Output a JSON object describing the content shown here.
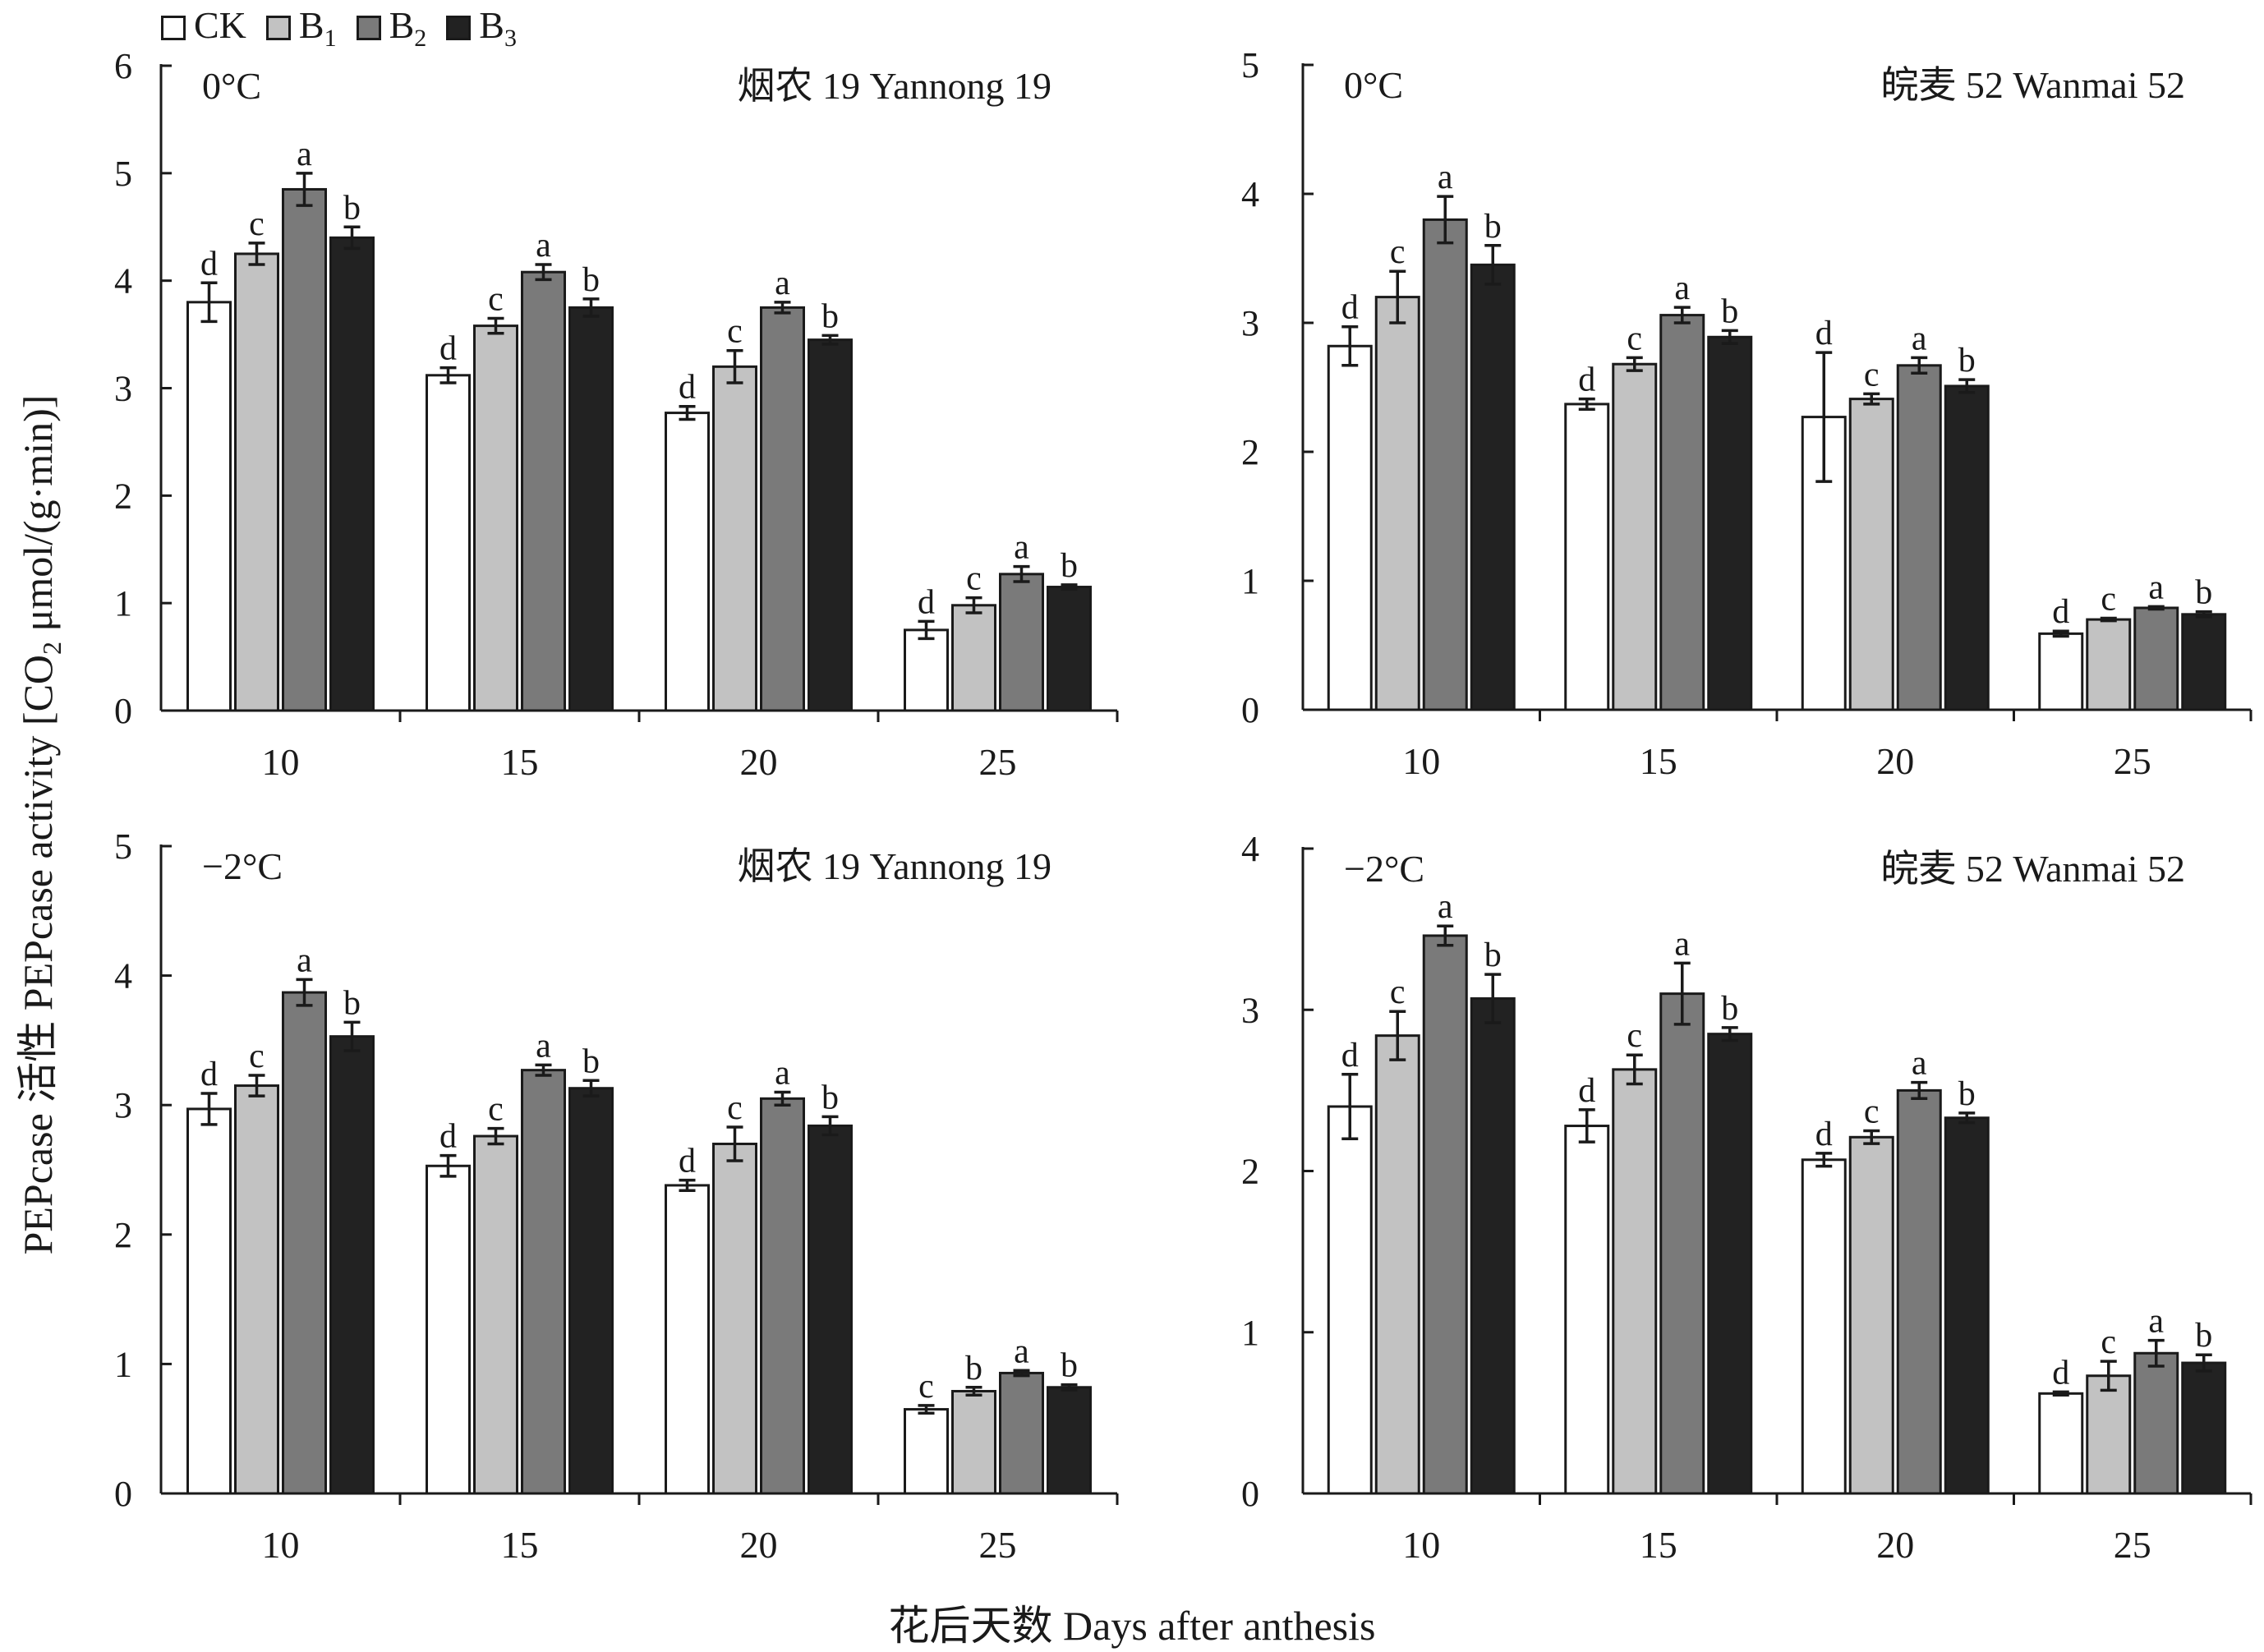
{
  "legend": {
    "items": [
      {
        "base": "CK",
        "sub": "",
        "color": "#ffffff"
      },
      {
        "base": "B",
        "sub": "1",
        "color": "#c2c2c2"
      },
      {
        "base": "B",
        "sub": "2",
        "color": "#7a7a7a"
      },
      {
        "base": "B",
        "sub": "3",
        "color": "#222222"
      }
    ]
  },
  "ylabel": {
    "pre": "PEPcase 活性 PEPcase activity [CO",
    "sub": "2",
    "post": " μmol/(g·min)]"
  },
  "xlabel": "花后天数 Days after anthesis",
  "chart_data": [
    {
      "type": "bar",
      "temperature": "0°C",
      "cultivar": "烟农 19 Yannong 19",
      "categories": [
        "10",
        "15",
        "20",
        "25"
      ],
      "ylim": [
        0,
        6
      ],
      "yticks": [
        0,
        1,
        2,
        3,
        4,
        5,
        6
      ],
      "series": [
        {
          "name": "CK",
          "values": [
            3.8,
            3.12,
            2.77,
            0.75
          ],
          "errors": [
            0.18,
            0.07,
            0.06,
            0.08
          ],
          "letters": [
            "d",
            "d",
            "d",
            "d"
          ]
        },
        {
          "name": "B1",
          "values": [
            4.25,
            3.58,
            3.2,
            0.98
          ],
          "errors": [
            0.1,
            0.07,
            0.15,
            0.07
          ],
          "letters": [
            "c",
            "c",
            "c",
            "c"
          ]
        },
        {
          "name": "B2",
          "values": [
            4.85,
            4.08,
            3.75,
            1.27
          ],
          "errors": [
            0.15,
            0.07,
            0.05,
            0.07
          ],
          "letters": [
            "a",
            "a",
            "a",
            "a"
          ]
        },
        {
          "name": "B3",
          "values": [
            4.4,
            3.75,
            3.45,
            1.15
          ],
          "errors": [
            0.1,
            0.08,
            0.04,
            0.02
          ],
          "letters": [
            "b",
            "b",
            "b",
            "b"
          ]
        }
      ]
    },
    {
      "type": "bar",
      "temperature": "0°C",
      "cultivar": "皖麦 52 Wanmai 52",
      "categories": [
        "10",
        "15",
        "20",
        "25"
      ],
      "ylim": [
        0,
        5
      ],
      "yticks": [
        0,
        1,
        2,
        3,
        4,
        5
      ],
      "series": [
        {
          "name": "CK",
          "values": [
            2.82,
            2.37,
            2.27,
            0.59
          ],
          "errors": [
            0.15,
            0.04,
            0.5,
            0.02
          ],
          "letters": [
            "d",
            "d",
            "d",
            "d"
          ]
        },
        {
          "name": "B1",
          "values": [
            3.2,
            2.68,
            2.41,
            0.7
          ],
          "errors": [
            0.2,
            0.05,
            0.04,
            0.01
          ],
          "letters": [
            "c",
            "c",
            "c",
            "c"
          ]
        },
        {
          "name": "B2",
          "values": [
            3.8,
            3.06,
            2.67,
            0.79
          ],
          "errors": [
            0.18,
            0.06,
            0.06,
            0.01
          ],
          "letters": [
            "a",
            "a",
            "a",
            "a"
          ]
        },
        {
          "name": "B3",
          "values": [
            3.45,
            2.89,
            2.51,
            0.74
          ],
          "errors": [
            0.15,
            0.05,
            0.05,
            0.02
          ],
          "letters": [
            "b",
            "b",
            "b",
            "b"
          ]
        }
      ]
    },
    {
      "type": "bar",
      "temperature": "−2°C",
      "cultivar": "烟农 19 Yannong 19",
      "categories": [
        "10",
        "15",
        "20",
        "25"
      ],
      "ylim": [
        0,
        5
      ],
      "yticks": [
        0,
        1,
        2,
        3,
        4,
        5
      ],
      "series": [
        {
          "name": "CK",
          "values": [
            2.97,
            2.53,
            2.38,
            0.65
          ],
          "errors": [
            0.12,
            0.08,
            0.04,
            0.03
          ],
          "letters": [
            "d",
            "d",
            "d",
            "c"
          ]
        },
        {
          "name": "B1",
          "values": [
            3.15,
            2.76,
            2.7,
            0.79
          ],
          "errors": [
            0.08,
            0.06,
            0.13,
            0.03
          ],
          "letters": [
            "c",
            "c",
            "c",
            "b"
          ]
        },
        {
          "name": "B2",
          "values": [
            3.87,
            3.27,
            3.05,
            0.93
          ],
          "errors": [
            0.1,
            0.04,
            0.05,
            0.02
          ],
          "letters": [
            "a",
            "a",
            "a",
            "a"
          ]
        },
        {
          "name": "B3",
          "values": [
            3.53,
            3.13,
            2.84,
            0.82
          ],
          "errors": [
            0.11,
            0.06,
            0.07,
            0.02
          ],
          "letters": [
            "b",
            "b",
            "b",
            "b"
          ]
        }
      ]
    },
    {
      "type": "bar",
      "temperature": "−2°C",
      "cultivar": "皖麦 52 Wanmai 52",
      "categories": [
        "10",
        "15",
        "20",
        "25"
      ],
      "ylim": [
        0,
        4
      ],
      "yticks": [
        0,
        1,
        2,
        3,
        4
      ],
      "series": [
        {
          "name": "CK",
          "values": [
            2.4,
            2.28,
            2.07,
            0.62
          ],
          "errors": [
            0.2,
            0.1,
            0.04,
            0.01
          ],
          "letters": [
            "d",
            "d",
            "d",
            "d"
          ]
        },
        {
          "name": "B1",
          "values": [
            2.84,
            2.63,
            2.21,
            0.73
          ],
          "errors": [
            0.15,
            0.09,
            0.04,
            0.09
          ],
          "letters": [
            "c",
            "c",
            "c",
            "c"
          ]
        },
        {
          "name": "B2",
          "values": [
            3.46,
            3.1,
            2.5,
            0.87
          ],
          "errors": [
            0.06,
            0.19,
            0.05,
            0.08
          ],
          "letters": [
            "a",
            "a",
            "a",
            "a"
          ]
        },
        {
          "name": "B3",
          "values": [
            3.07,
            2.85,
            2.33,
            0.81
          ],
          "errors": [
            0.15,
            0.04,
            0.03,
            0.05
          ],
          "letters": [
            "b",
            "b",
            "b",
            "b"
          ]
        }
      ]
    }
  ]
}
